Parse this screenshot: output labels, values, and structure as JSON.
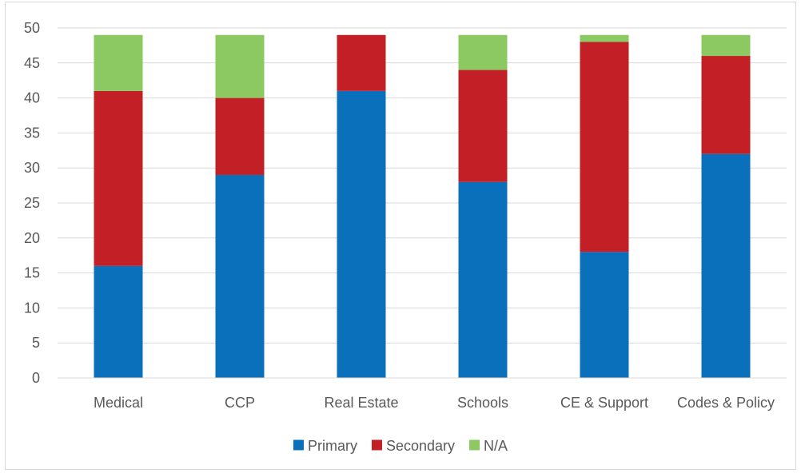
{
  "chart_data": {
    "type": "bar",
    "stacked": true,
    "categories": [
      "Medical",
      "CCP",
      "Real Estate",
      "Schools",
      "CE & Support",
      "Codes & Policy"
    ],
    "series": [
      {
        "name": "Primary",
        "color": "#0b70bc",
        "values": [
          16,
          29,
          41,
          28,
          18,
          32
        ]
      },
      {
        "name": "Secondary",
        "color": "#c21f26",
        "values": [
          25,
          11,
          8,
          16,
          30,
          14
        ]
      },
      {
        "name": "N/A",
        "color": "#8cc962",
        "values": [
          8,
          9,
          0,
          5,
          1,
          3
        ]
      }
    ],
    "ylim": [
      0,
      50
    ],
    "yticks": [
      0,
      5,
      10,
      15,
      20,
      25,
      30,
      35,
      40,
      45,
      50
    ],
    "grid": true,
    "legend_position": "bottom",
    "title": "",
    "xlabel": "",
    "ylabel": ""
  }
}
